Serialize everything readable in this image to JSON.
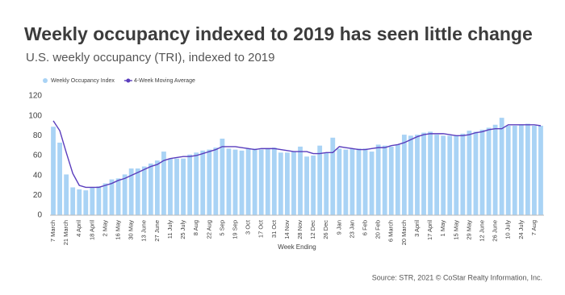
{
  "chart_data": {
    "type": "bar",
    "title": "Weekly occupancy indexed to 2019 has seen little change",
    "subtitle": "U.S. weekly occupancy (TRI), indexed to 2019",
    "x_label": "Week Ending",
    "source": "Source: STR, 2021 © CoStar Realty Information, Inc.",
    "categories": [
      "7 March",
      null,
      "21 March",
      null,
      "4 April",
      null,
      "18 April",
      null,
      "2 May",
      null,
      "16 May",
      null,
      "30 May",
      null,
      "13 June",
      null,
      "27 June",
      null,
      "11 July",
      null,
      "25 July",
      null,
      "8 Aug",
      null,
      "22 Aug",
      null,
      "5 Sep",
      null,
      "19 Sep",
      null,
      "3 Oct",
      null,
      "17 Oct",
      null,
      "31 Oct",
      null,
      "14 Nov",
      null,
      "28 Nov",
      null,
      "12 Dec",
      null,
      "26 Dec",
      null,
      "9 Jan",
      null,
      "23 Jan",
      null,
      "6 Feb",
      null,
      "20 Feb",
      null,
      "6 March",
      null,
      "20 March",
      null,
      "3 April",
      null,
      "17 April",
      null,
      "1 May",
      null,
      "15 May",
      null,
      "29 May",
      null,
      "12 June",
      null,
      "26 June",
      null,
      "10 July",
      null,
      "24 July",
      null,
      "7 Aug",
      null
    ],
    "series": [
      {
        "name": "Weekly Occupancy Index",
        "color": "#a9d3f5",
        "type": "bar",
        "values": [
          89,
          73,
          41,
          28,
          26,
          25,
          28,
          29,
          32,
          36,
          37,
          41,
          47,
          47,
          49,
          52,
          55,
          64,
          57,
          57,
          57,
          61,
          63,
          65,
          66,
          68,
          77,
          67,
          66,
          65,
          67,
          67,
          66,
          67,
          68,
          63,
          63,
          64,
          69,
          59,
          60,
          70,
          63,
          78,
          67,
          66,
          67,
          67,
          67,
          64,
          71,
          70,
          69,
          71,
          81,
          80,
          81,
          83,
          84,
          81,
          80,
          80,
          80,
          82,
          85,
          84,
          86,
          88,
          91,
          98,
          90,
          90,
          91,
          92,
          90,
          90
        ]
      },
      {
        "name": "4-Week Moving Average",
        "color": "#5a3dbd",
        "type": "line",
        "values": [
          95,
          85,
          63,
          42,
          30,
          28,
          28,
          28,
          30,
          32,
          35,
          37,
          40,
          43,
          46,
          49,
          51,
          55,
          57,
          58,
          59,
          59,
          60,
          62,
          64,
          66,
          69,
          69,
          69,
          68,
          67,
          66,
          67,
          67,
          67,
          66,
          65,
          64,
          64,
          64,
          62,
          62,
          63,
          63,
          69,
          68,
          67,
          66,
          66,
          67,
          68,
          68,
          70,
          71,
          73,
          76,
          79,
          81,
          82,
          82,
          82,
          81,
          80,
          80,
          81,
          83,
          84,
          86,
          87,
          87,
          91,
          91,
          91,
          91,
          91,
          90
        ]
      }
    ],
    "ylim": [
      0,
      120
    ],
    "yticks": [
      0,
      20,
      40,
      60,
      80,
      100,
      120
    ],
    "grid": false
  }
}
